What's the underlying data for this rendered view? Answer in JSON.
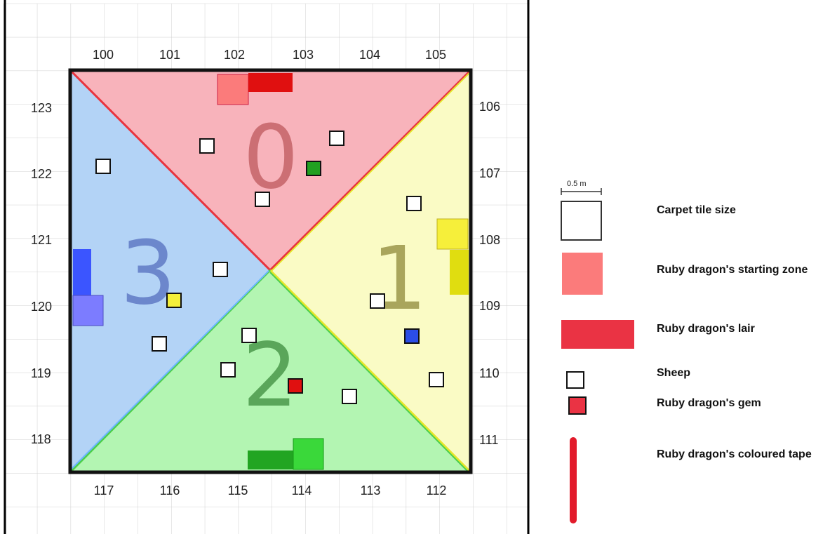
{
  "arena": {
    "top_labels": [
      "100",
      "101",
      "102",
      "103",
      "104",
      "105"
    ],
    "right_labels": [
      "106",
      "107",
      "108",
      "109",
      "110",
      "111"
    ],
    "bottom_labels": [
      "117",
      "116",
      "115",
      "114",
      "113",
      "112"
    ],
    "left_labels": [
      "123",
      "122",
      "121",
      "120",
      "119",
      "118"
    ],
    "zones": [
      {
        "number": "0",
        "fill": "#f8b3bb",
        "digit_color": "#cc6f74"
      },
      {
        "number": "1",
        "fill": "#fafbc5",
        "digit_color": "#a9a55c"
      },
      {
        "number": "2",
        "fill": "#b3f5b2",
        "digit_color": "#5aa65a"
      },
      {
        "number": "3",
        "fill": "#b3d3f6",
        "digit_color": "#6c87cc"
      }
    ]
  },
  "legend": {
    "scale_text": "0.5 m",
    "items": [
      {
        "label": "Carpet tile size"
      },
      {
        "label": "Ruby dragon's starting zone"
      },
      {
        "label": "Ruby dragon's lair"
      },
      {
        "label": "Sheep"
      },
      {
        "label": "Ruby dragon's gem"
      },
      {
        "label": "Ruby dragon's coloured tape"
      }
    ]
  },
  "colors": {
    "ruby_start": "#fb7b7b",
    "ruby_lair": "#ea3344",
    "gem_red": "#e01010",
    "gem_green": "#21a021",
    "gem_blue": "#2b4de6",
    "gem_yellow": "#f4ef3a",
    "tape_red": "#e21b2b"
  }
}
